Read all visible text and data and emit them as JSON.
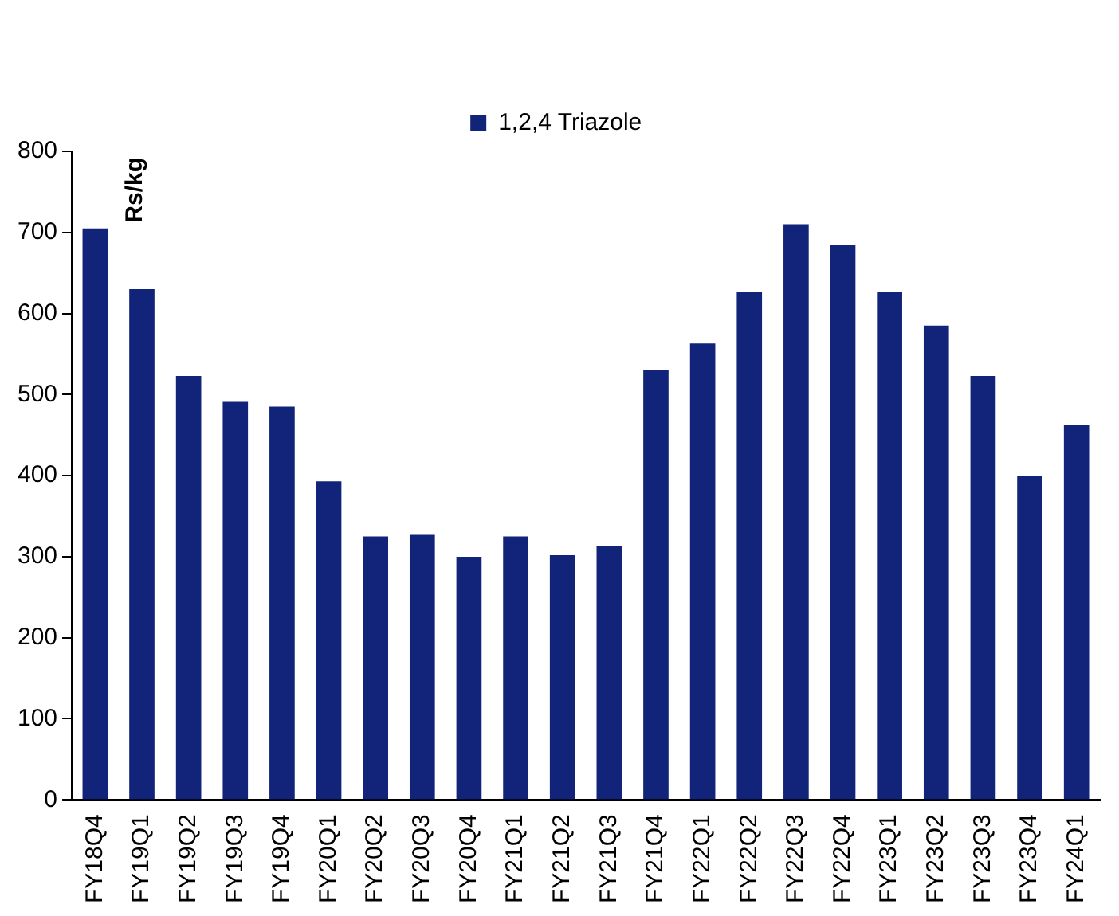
{
  "chart_data": {
    "type": "bar",
    "ylabel": "Rs/kg",
    "categories": [
      "FY18Q4",
      "FY19Q1",
      "FY19Q2",
      "FY19Q3",
      "FY19Q4",
      "FY20Q1",
      "FY20Q2",
      "FY20Q3",
      "FY20Q4",
      "FY21Q1",
      "FY21Q2",
      "FY21Q3",
      "FY21Q4",
      "FY22Q1",
      "FY22Q2",
      "FY22Q3",
      "FY22Q4",
      "FY23Q1",
      "FY23Q2",
      "FY23Q3",
      "FY23Q4",
      "FY24Q1"
    ],
    "series": [
      {
        "name": "1,2,4 Triazole",
        "color": "#12237a",
        "values": [
          705,
          630,
          523,
          491,
          485,
          393,
          325,
          327,
          300,
          325,
          302,
          313,
          530,
          563,
          627,
          710,
          685,
          627,
          585,
          523,
          400,
          462
        ]
      }
    ],
    "ylim": [
      0,
      800
    ],
    "yticks": [
      0,
      100,
      200,
      300,
      400,
      500,
      600,
      700,
      800
    ],
    "grid": false,
    "legend": "top"
  }
}
